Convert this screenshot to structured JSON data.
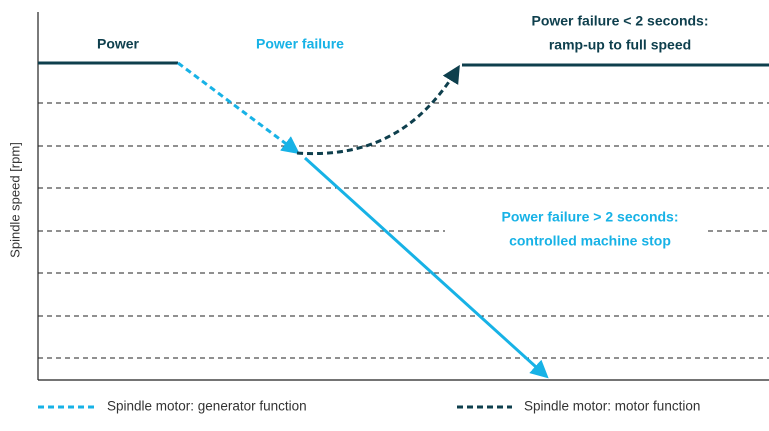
{
  "axis": {
    "y_label": "Spindle speed [rpm]"
  },
  "labels": {
    "power": "Power",
    "power_failure": "Power failure",
    "short_failure": [
      "Power failure < 2 seconds:",
      "ramp-up to full speed"
    ],
    "long_failure": [
      "Power failure > 2 seconds:",
      "controlled machine stop"
    ]
  },
  "legend": [
    "Spindle motor: generator function",
    "Spindle motor: motor function"
  ]
}
